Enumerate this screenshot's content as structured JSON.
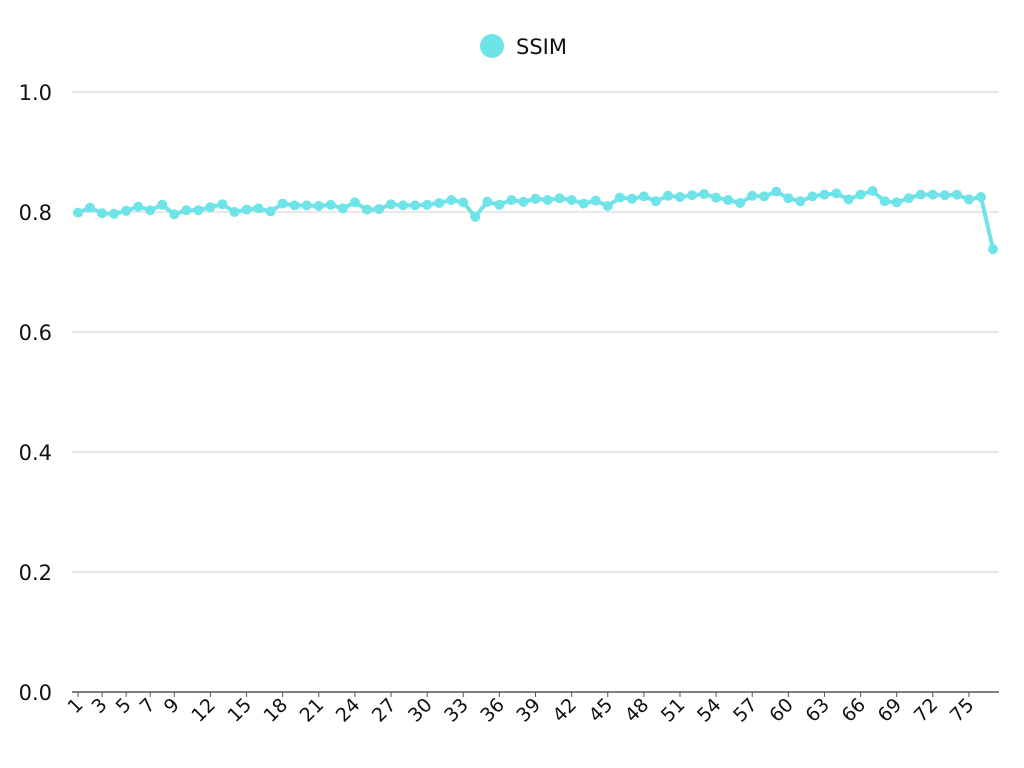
{
  "chart_data": {
    "type": "line",
    "title": "",
    "xlabel": "",
    "ylabel": "",
    "ylim": [
      0,
      1
    ],
    "yticks": [
      "0.0",
      "0.2",
      "0.4",
      "0.6",
      "0.8",
      "1.0"
    ],
    "x": [
      1,
      2,
      3,
      4,
      5,
      6,
      7,
      8,
      9,
      10,
      11,
      12,
      13,
      14,
      15,
      16,
      17,
      18,
      19,
      20,
      21,
      22,
      23,
      24,
      25,
      26,
      27,
      28,
      29,
      30,
      31,
      32,
      33,
      34,
      35,
      36,
      37,
      38,
      39,
      40,
      41,
      42,
      43,
      44,
      45,
      46,
      47,
      48,
      49,
      50,
      51,
      52,
      53,
      54,
      55,
      56,
      57,
      58,
      59,
      60,
      61,
      62,
      63,
      64,
      65,
      66,
      67,
      68,
      69,
      70,
      71,
      72,
      73,
      74,
      75,
      76,
      77
    ],
    "xtick_labels": [
      "1",
      "3",
      "5",
      "7",
      "9",
      "12",
      "15",
      "18",
      "21",
      "24",
      "27",
      "30",
      "33",
      "36",
      "39",
      "42",
      "45",
      "48",
      "51",
      "54",
      "57",
      "60",
      "63",
      "66",
      "69",
      "72",
      "75"
    ],
    "grid": true,
    "legend_position": "top-center",
    "series": [
      {
        "name": "SSIM",
        "color": "#6ee3e8",
        "values": [
          0.799,
          0.807,
          0.798,
          0.797,
          0.802,
          0.809,
          0.803,
          0.812,
          0.796,
          0.803,
          0.803,
          0.808,
          0.813,
          0.8,
          0.804,
          0.806,
          0.801,
          0.814,
          0.811,
          0.811,
          0.81,
          0.812,
          0.806,
          0.816,
          0.804,
          0.805,
          0.813,
          0.811,
          0.811,
          0.812,
          0.815,
          0.82,
          0.816,
          0.792,
          0.817,
          0.812,
          0.82,
          0.817,
          0.822,
          0.82,
          0.823,
          0.82,
          0.814,
          0.819,
          0.81,
          0.824,
          0.822,
          0.826,
          0.818,
          0.827,
          0.825,
          0.828,
          0.83,
          0.824,
          0.82,
          0.815,
          0.827,
          0.826,
          0.834,
          0.823,
          0.818,
          0.826,
          0.829,
          0.831,
          0.821,
          0.829,
          0.835,
          0.818,
          0.816,
          0.823,
          0.829,
          0.829,
          0.828,
          0.829,
          0.821,
          0.825,
          0.738
        ]
      }
    ]
  }
}
